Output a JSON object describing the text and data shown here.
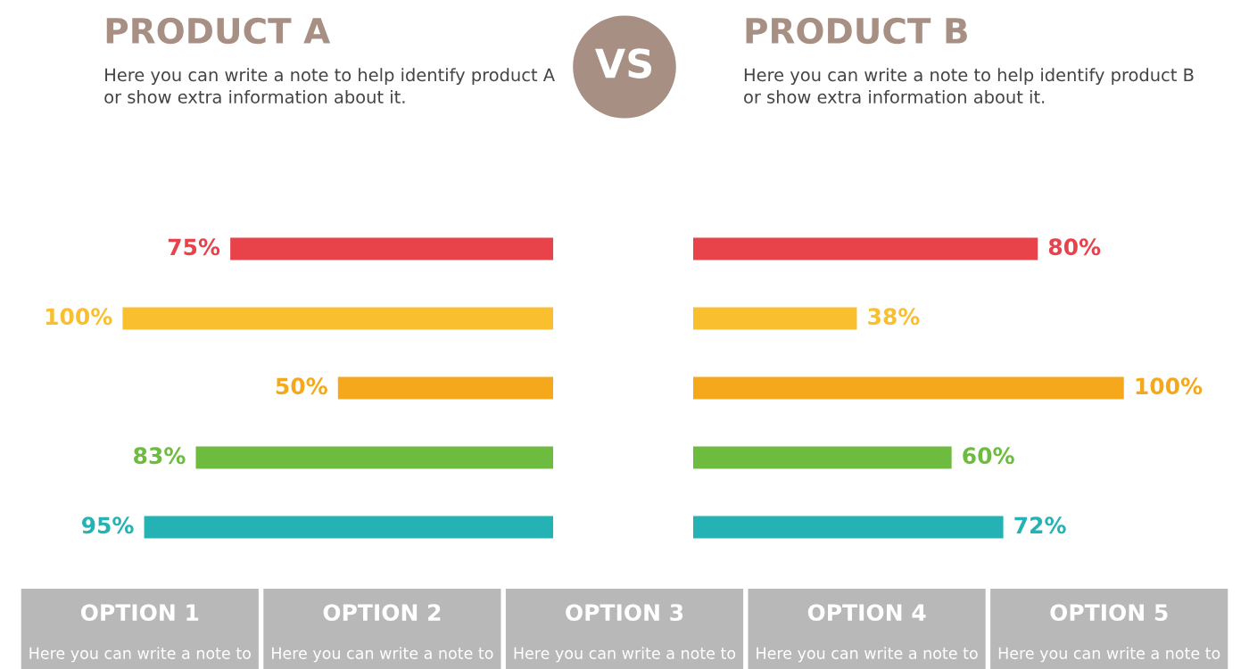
{
  "chart_data": [
    {
      "type": "bar",
      "orientation": "horizontal",
      "title": "PRODUCT A",
      "subtitle": "Here you can write a note to help identify product A\nor show extra information about it.",
      "categories": [
        null,
        null,
        null,
        null,
        null
      ],
      "values": [
        75,
        100,
        50,
        83,
        95
      ],
      "value_labels": [
        "75%",
        "100%",
        "50%",
        "83%",
        "95%"
      ],
      "colors": [
        "#e8434a",
        "#f9bf2e",
        "#f6a81c",
        "#6dbb3f",
        "#25b2b5"
      ],
      "tick_labels": false
    },
    {
      "type": "other",
      "annotations": [
        "VS"
      ]
    },
    {
      "type": "bar",
      "orientation": "horizontal",
      "title": "PRODUCT B",
      "subtitle": "Here you can write a note to help identify product B\nor show extra information about it.",
      "categories": [
        null,
        null,
        null,
        null,
        null
      ],
      "values": [
        80,
        38,
        100,
        60,
        72
      ],
      "value_labels": [
        "80%",
        "38%",
        "100%",
        "60%",
        "72%"
      ],
      "colors": [
        "#e8434a",
        "#f9bf2e",
        "#f6a81c",
        "#6dbb3f",
        "#25b2b5"
      ],
      "tick_labels": false
    },
    {
      "type": "other",
      "categories": [
        "OPTION 1",
        "OPTION 2",
        "OPTION 3",
        "OPTION 4",
        "OPTION 5"
      ],
      "annotations": [
        "Here you can write a note to",
        "Here you can write a note to",
        "Here you can write a note to",
        "Here you can write a note to",
        "Here you can write a note to"
      ]
    }
  ]
}
